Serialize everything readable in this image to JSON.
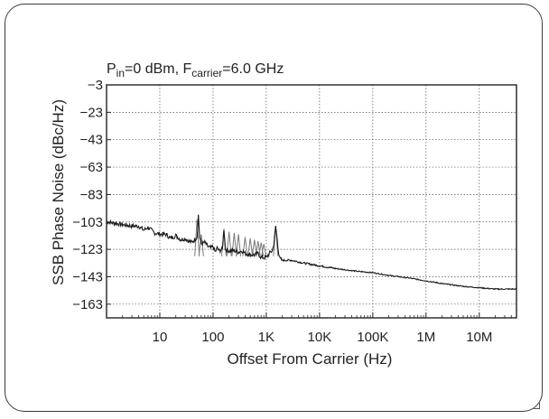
{
  "chart_data": {
    "type": "line",
    "title": {
      "prefix": "P",
      "sub1": "in",
      "middle": "=0 dBm, F",
      "sub2": "carrier",
      "suffix": "=6.0 GHz"
    },
    "xlabel": "Offset From Carrier (Hz)",
    "ylabel": "SSB Phase Noise (dBc/Hz)",
    "x_scale": "log",
    "xlim": [
      1,
      50000000
    ],
    "ylim": [
      -173,
      -3
    ],
    "y_ticks": [
      -3,
      -23,
      -43,
      -63,
      -83,
      -103,
      -123,
      -143,
      -163
    ],
    "x_ticks": [
      {
        "value": 10,
        "label": "10"
      },
      {
        "value": 100,
        "label": "100"
      },
      {
        "value": 1000,
        "label": "1K"
      },
      {
        "value": 10000,
        "label": "10K"
      },
      {
        "value": 100000,
        "label": "100K"
      },
      {
        "value": 1000000,
        "label": "1M"
      },
      {
        "value": 10000000,
        "label": "10M"
      }
    ],
    "grid": true,
    "series": [
      {
        "values": [
          [
            1,
            -103
          ],
          [
            1.5,
            -104
          ],
          [
            2,
            -105
          ],
          [
            3,
            -106
          ],
          [
            4,
            -106
          ],
          [
            5,
            -109
          ],
          [
            6,
            -107
          ],
          [
            8,
            -111
          ],
          [
            10,
            -112
          ],
          [
            13,
            -112
          ],
          [
            16,
            -115
          ],
          [
            20,
            -113
          ],
          [
            25,
            -116
          ],
          [
            30,
            -115
          ],
          [
            35,
            -117
          ],
          [
            40,
            -118
          ],
          [
            45,
            -116
          ],
          [
            50,
            -114
          ],
          [
            53,
            -98
          ],
          [
            56,
            -114
          ],
          [
            60,
            -119
          ],
          [
            70,
            -118
          ],
          [
            80,
            -121
          ],
          [
            90,
            -122
          ],
          [
            100,
            -121
          ],
          [
            110,
            -125
          ],
          [
            120,
            -122
          ],
          [
            130,
            -124
          ],
          [
            150,
            -123
          ],
          [
            160,
            -108
          ],
          [
            170,
            -123
          ],
          [
            200,
            -124
          ],
          [
            250,
            -124
          ],
          [
            300,
            -125
          ],
          [
            350,
            -124
          ],
          [
            400,
            -126
          ],
          [
            500,
            -127
          ],
          [
            600,
            -127
          ],
          [
            700,
            -126
          ],
          [
            800,
            -129
          ],
          [
            1000,
            -129
          ],
          [
            1200,
            -125
          ],
          [
            1300,
            -124
          ],
          [
            1400,
            -118
          ],
          [
            1500,
            -106
          ],
          [
            1600,
            -115
          ],
          [
            1700,
            -125
          ],
          [
            1800,
            -130
          ],
          [
            2000,
            -131
          ],
          [
            3000,
            -131
          ],
          [
            5000,
            -133
          ],
          [
            10000,
            -135
          ],
          [
            20000,
            -137
          ],
          [
            50000,
            -139
          ],
          [
            100000,
            -140
          ],
          [
            200000,
            -142
          ],
          [
            500000,
            -144
          ],
          [
            1000000,
            -146
          ],
          [
            2000000,
            -148
          ],
          [
            5000000,
            -150
          ],
          [
            10000000,
            -151
          ],
          [
            20000000,
            -152
          ],
          [
            50000000,
            -152
          ]
        ]
      }
    ],
    "trace_color": "#1a1a1a",
    "spur_color": "#7a7a7a",
    "spurs": [
      {
        "x": 50,
        "y": -101
      },
      {
        "x": 60,
        "y": -112
      },
      {
        "x": 160,
        "y": -108
      },
      {
        "x": 200,
        "y": -110
      },
      {
        "x": 250,
        "y": -111
      },
      {
        "x": 300,
        "y": -112
      },
      {
        "x": 400,
        "y": -114
      },
      {
        "x": 500,
        "y": -115
      },
      {
        "x": 600,
        "y": -116
      },
      {
        "x": 700,
        "y": -117
      },
      {
        "x": 800,
        "y": -118
      },
      {
        "x": 900,
        "y": -119
      },
      {
        "x": 1500,
        "y": -106
      }
    ]
  }
}
